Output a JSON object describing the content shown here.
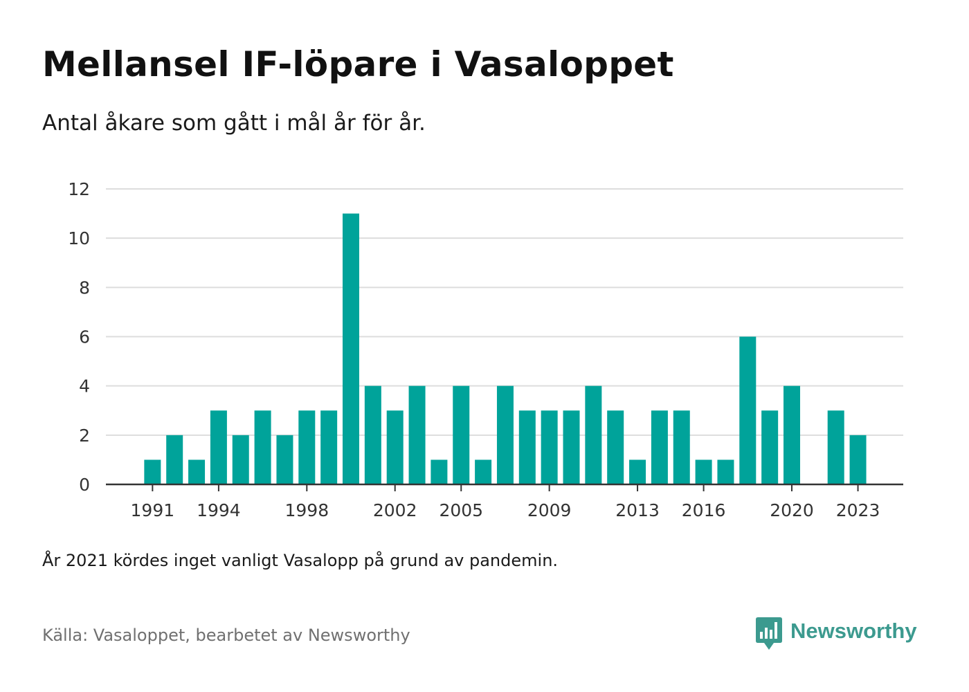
{
  "header": {
    "title": "Mellansel IF-löpare i Vasaloppet",
    "subtitle": "Antal åkare som gått i mål år för år."
  },
  "footer": {
    "note": "År 2021 kördes inget vanligt Vasalopp på grund av pandemin.",
    "source": "Källa: Vasaloppet, bearbetet av Newsworthy",
    "brand_name": "Newsworthy",
    "brand_icon": "newsworthy-logo-icon"
  },
  "colors": {
    "bar": "#00a39a",
    "grid": "#dddddd",
    "baseline": "#333333",
    "brand": "#3c9a8f"
  },
  "chart_data": {
    "type": "bar",
    "x": [
      1991,
      1992,
      1993,
      1994,
      1995,
      1996,
      1997,
      1998,
      1999,
      2000,
      2001,
      2002,
      2003,
      2004,
      2005,
      2006,
      2007,
      2008,
      2009,
      2010,
      2011,
      2012,
      2013,
      2014,
      2015,
      2016,
      2017,
      2018,
      2019,
      2020,
      2021,
      2022,
      2023
    ],
    "values": [
      1,
      2,
      1,
      3,
      2,
      3,
      2,
      3,
      3,
      11,
      4,
      3,
      4,
      1,
      4,
      1,
      4,
      3,
      3,
      3,
      4,
      3,
      1,
      3,
      3,
      1,
      1,
      6,
      3,
      4,
      null,
      3,
      2
    ],
    "x_tick_labels": [
      "1991",
      "1994",
      "1998",
      "2002",
      "2005",
      "2009",
      "2013",
      "2016",
      "2020",
      "2023"
    ],
    "y_ticks": [
      0,
      2,
      4,
      6,
      8,
      10,
      12
    ],
    "ylim": [
      0,
      12
    ],
    "xlim": [
      1990,
      2025
    ],
    "grid": "horizontal",
    "legend": "none"
  }
}
